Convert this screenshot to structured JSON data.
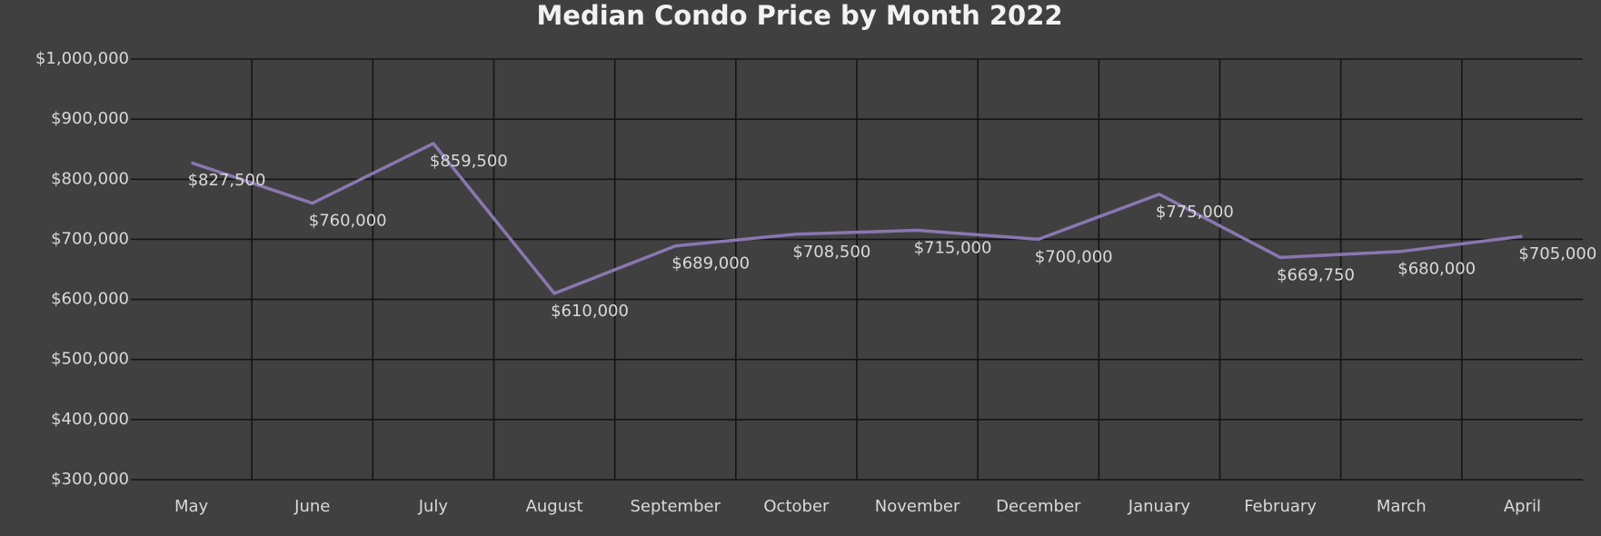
{
  "chart_data": {
    "type": "line",
    "title": "Median Condo Price by Month 2022",
    "categories": [
      "May",
      "June",
      "July",
      "August",
      "September",
      "October",
      "November",
      "December",
      "January",
      "February",
      "March",
      "April"
    ],
    "values": [
      827500,
      760000,
      859500,
      610000,
      689000,
      708500,
      715000,
      700000,
      775000,
      669750,
      680000,
      705000
    ],
    "value_labels": [
      "$827,500",
      "$760,000",
      "$859,500",
      "$610,000",
      "$689,000",
      "$708,500",
      "$715,000",
      "$700,000",
      "$775,000",
      "$669,750",
      "$680,000",
      "$705,000"
    ],
    "color": "#8a76b0",
    "ylim": [
      300000,
      1000000
    ],
    "yticks": [
      {
        "value": 300000,
        "label": "$300,000"
      },
      {
        "value": 400000,
        "label": "$400,000"
      },
      {
        "value": 500000,
        "label": "$500,000"
      },
      {
        "value": 600000,
        "label": "$600,000"
      },
      {
        "value": 700000,
        "label": "$700,000"
      },
      {
        "value": 800000,
        "label": "$800,000"
      },
      {
        "value": 900000,
        "label": "$900,000"
      },
      {
        "value": 1000000,
        "label": "$1,000,000"
      }
    ],
    "grid": true
  }
}
